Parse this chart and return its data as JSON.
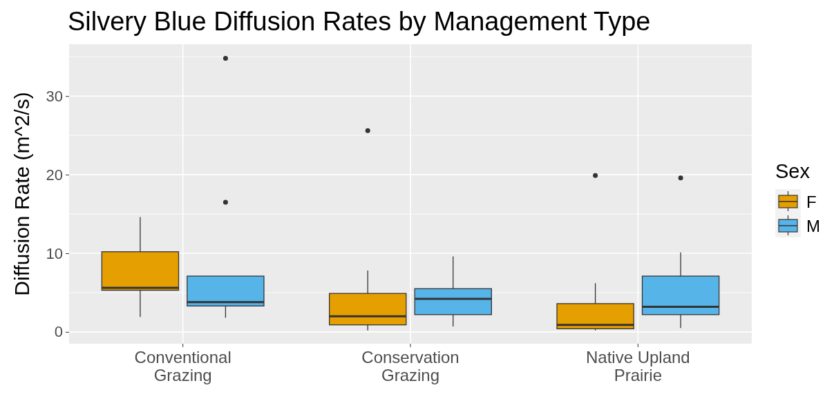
{
  "chart_data": {
    "type": "box",
    "title": "Silvery Blue Diffusion Rates by Management Type",
    "ylabel": "Diffusion Rate (m^2/s)",
    "legend_title": "Sex",
    "categories": [
      "Conventional Grazing",
      "Conservation Grazing",
      "Native Upland Prairie"
    ],
    "ylim": [
      -1.5,
      36.6
    ],
    "yticks": [
      0,
      10,
      20,
      30
    ],
    "grid": true,
    "legend": "right",
    "series": [
      {
        "name": "F",
        "color": "#e69f00",
        "boxes": [
          {
            "low": 1.9,
            "q1": 5.3,
            "median": 5.6,
            "q3": 10.2,
            "high": 14.6
          },
          {
            "low": 0.2,
            "q1": 0.9,
            "median": 2.0,
            "q3": 4.9,
            "high": 7.8,
            "outliers": [
              25.6
            ]
          },
          {
            "low": 0.2,
            "q1": 0.4,
            "median": 0.9,
            "q3": 3.6,
            "high": 6.2,
            "outliers": [
              19.9
            ]
          }
        ]
      },
      {
        "name": "M",
        "color": "#56b4e9",
        "boxes": [
          {
            "low": 1.8,
            "q1": 3.3,
            "median": 3.8,
            "q3": 7.1,
            "high": 7.1,
            "outliers": [
              16.5,
              34.8
            ]
          },
          {
            "low": 0.7,
            "q1": 2.2,
            "median": 4.2,
            "q3": 5.5,
            "high": 9.6
          },
          {
            "low": 0.5,
            "q1": 2.2,
            "median": 3.2,
            "q3": 7.1,
            "high": 10.1,
            "outliers": [
              19.6
            ]
          }
        ]
      }
    ]
  }
}
